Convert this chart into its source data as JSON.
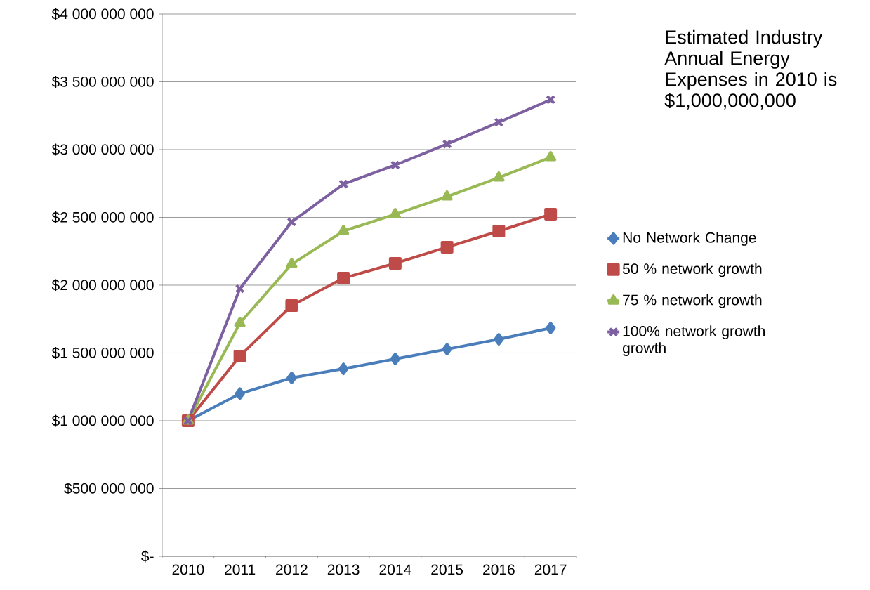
{
  "chart_data": {
    "type": "line",
    "categories": [
      "2010",
      "2011",
      "2012",
      "2013",
      "2014",
      "2015",
      "2016",
      "2017"
    ],
    "series": [
      {
        "name": "No Network Change",
        "color": "#4a7ebb",
        "marker": "diamond",
        "values": [
          1000000000,
          1200000000,
          1316000000,
          1383000000,
          1456000000,
          1528000000,
          1601000000,
          1684000000
        ]
      },
      {
        "name": "50 % network growth",
        "color": "#be4b48",
        "marker": "square",
        "values": [
          1000000000,
          1477000000,
          1850000000,
          2052000000,
          2161000000,
          2280000000,
          2399000000,
          2523000000
        ]
      },
      {
        "name": "75 % network growth",
        "color": "#98b954",
        "marker": "triangle",
        "values": [
          1000000000,
          1720000000,
          2155000000,
          2399000000,
          2523000000,
          2653000000,
          2793000000,
          2943000000
        ]
      },
      {
        "name": "100% network growth growth",
        "color": "#7d60a0",
        "marker": "cross",
        "values": [
          1000000000,
          1974000000,
          2466000000,
          2746000000,
          2886000000,
          3041000000,
          3202000000,
          3368000000
        ]
      }
    ],
    "ylim": [
      0,
      4000000000
    ],
    "yticks": [
      {
        "value": 0,
        "label": "$-"
      },
      {
        "value": 500000000,
        "label": "$500 000 000"
      },
      {
        "value": 1000000000,
        "label": "$1 000 000 000"
      },
      {
        "value": 1500000000,
        "label": "$1 500 000 000"
      },
      {
        "value": 2000000000,
        "label": "$2 000 000 000"
      },
      {
        "value": 2500000000,
        "label": "$2 500 000 000"
      },
      {
        "value": 3000000000,
        "label": "$3 000 000 000"
      },
      {
        "value": 3500000000,
        "label": "$3 500 000 000"
      },
      {
        "value": 4000000000,
        "label": "$4 000 000 000"
      }
    ],
    "grid": "y",
    "legend": "right",
    "annotations": [
      "Estimated Industry Annual Energy Expenses in 2010 is $1,000,000,000"
    ]
  }
}
